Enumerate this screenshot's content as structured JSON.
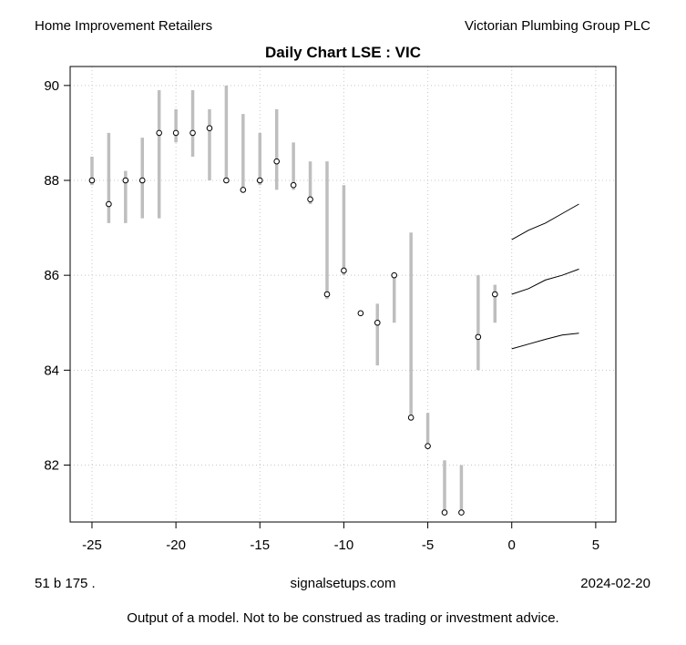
{
  "header": {
    "left": "Home Improvement Retailers",
    "right": "Victorian Plumbing Group PLC"
  },
  "footer": {
    "left": "51 b  175 .",
    "center": "signalsetups.com",
    "right": "2024-02-20",
    "disclaimer": "Output of a model.  Not to be construed as trading or investment advice."
  },
  "chart_data": {
    "type": "scatter",
    "title": "Daily Chart LSE : VIC",
    "xlabel": "",
    "ylabel": "",
    "xlim": [
      -26.3,
      6.2
    ],
    "ylim": [
      80.8,
      90.4
    ],
    "x_ticks": [
      -25,
      -20,
      -15,
      -10,
      -5,
      0,
      5
    ],
    "y_ticks": [
      82,
      84,
      86,
      88,
      90
    ],
    "grid": true,
    "bar_color": "#bebebe",
    "point_color": "#000000",
    "daily": [
      {
        "x": -25,
        "low": 87.9,
        "high": 88.5,
        "close": 88.0
      },
      {
        "x": -24,
        "low": 87.1,
        "high": 89.0,
        "close": 87.5
      },
      {
        "x": -23,
        "low": 87.1,
        "high": 88.2,
        "close": 88.0
      },
      {
        "x": -22,
        "low": 87.2,
        "high": 88.9,
        "close": 88.0
      },
      {
        "x": -21,
        "low": 87.2,
        "high": 89.9,
        "close": 89.0
      },
      {
        "x": -20,
        "low": 88.8,
        "high": 89.5,
        "close": 89.0
      },
      {
        "x": -19,
        "low": 88.5,
        "high": 89.9,
        "close": 89.0
      },
      {
        "x": -18,
        "low": 88.0,
        "high": 89.5,
        "close": 89.1
      },
      {
        "x": -17,
        "low": 88.0,
        "high": 90.0,
        "close": 88.0
      },
      {
        "x": -16,
        "low": 87.8,
        "high": 89.4,
        "close": 87.8
      },
      {
        "x": -15,
        "low": 87.9,
        "high": 89.0,
        "close": 88.0
      },
      {
        "x": -14,
        "low": 87.8,
        "high": 89.5,
        "close": 88.4
      },
      {
        "x": -13,
        "low": 87.8,
        "high": 88.8,
        "close": 87.9
      },
      {
        "x": -12,
        "low": 87.5,
        "high": 88.4,
        "close": 87.6
      },
      {
        "x": -11,
        "low": 85.5,
        "high": 88.4,
        "close": 85.6
      },
      {
        "x": -10,
        "low": 86.0,
        "high": 87.9,
        "close": 86.1
      },
      {
        "x": -9,
        "low": 85.2,
        "high": 85.2,
        "close": 85.2
      },
      {
        "x": -8,
        "low": 84.1,
        "high": 85.4,
        "close": 85.0
      },
      {
        "x": -7,
        "low": 85.0,
        "high": 86.0,
        "close": 86.0
      },
      {
        "x": -6,
        "low": 83.0,
        "high": 86.9,
        "close": 83.0
      },
      {
        "x": -5,
        "low": 82.4,
        "high": 83.1,
        "close": 82.4
      },
      {
        "x": -4,
        "low": 81.0,
        "high": 82.1,
        "close": 81.0
      },
      {
        "x": -3,
        "low": 81.0,
        "high": 82.0,
        "close": 81.0
      },
      {
        "x": -2,
        "low": 84.0,
        "high": 86.0,
        "close": 84.7
      },
      {
        "x": -1,
        "low": 85.0,
        "high": 85.8,
        "close": 85.6
      }
    ],
    "forecast": {
      "x": [
        0,
        1,
        2,
        3,
        4
      ],
      "upper": [
        86.75,
        86.95,
        87.1,
        87.3,
        87.5
      ],
      "mid": [
        85.6,
        85.72,
        85.9,
        86.0,
        86.13
      ],
      "lower": [
        84.45,
        84.55,
        84.65,
        84.74,
        84.78
      ]
    }
  }
}
